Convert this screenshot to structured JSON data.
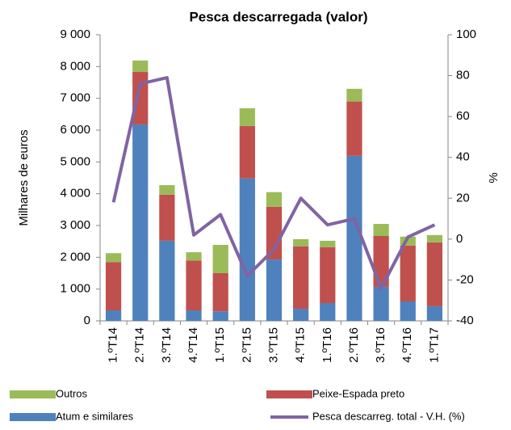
{
  "chart_data": {
    "type": "bar",
    "title": "Pesca descarregada (valor)",
    "y_label": "Milhares de euros",
    "y2_label": "%",
    "categories": [
      "1.ºT14",
      "2.ºT14",
      "3.ºT14",
      "4.ºT14",
      "1.ºT15",
      "2.ºT15",
      "3.ºT15",
      "4.ºT15",
      "1.ºT16",
      "2.ºT16",
      "3.ºT16",
      "4.ºT16",
      "1.ºT17"
    ],
    "stacked": true,
    "series": [
      {
        "name": "Atum e similares",
        "color": "#4f81bd",
        "values": [
          330,
          6180,
          2520,
          330,
          300,
          4480,
          1930,
          380,
          560,
          5190,
          1070,
          610,
          460
        ]
      },
      {
        "name": "Peixe-Espada preto",
        "color": "#c0504d",
        "values": [
          1520,
          1650,
          1450,
          1570,
          1200,
          1650,
          1660,
          1960,
          1760,
          1710,
          1600,
          1760,
          2010
        ]
      },
      {
        "name": "Outros",
        "color": "#9bbb59",
        "values": [
          280,
          360,
          300,
          260,
          890,
          560,
          460,
          230,
          200,
          400,
          380,
          280,
          230
        ]
      },
      {
        "name": "Pesca descarreg. total - V.H. (%)",
        "color": "#8064a2",
        "type": "line",
        "axis": "y2",
        "values": [
          18,
          76,
          79,
          2,
          12,
          -18,
          -5,
          20,
          7,
          10,
          -24,
          1,
          7
        ]
      }
    ],
    "ylim": [
      0,
      9000
    ],
    "yticks": [
      0,
      {
        "value": 1000,
        "label": "1 000"
      },
      {
        "value": 2000,
        "label": "2 000"
      },
      {
        "value": 3000,
        "label": "3 000"
      },
      {
        "value": 4000,
        "label": "4 000"
      },
      {
        "value": 5000,
        "label": "5 000"
      },
      {
        "value": 6000,
        "label": "6 000"
      },
      {
        "value": 7000,
        "label": "7 000"
      },
      {
        "value": 8000,
        "label": "8 000"
      },
      {
        "value": 9000,
        "label": "9 000"
      }
    ],
    "y2lim": [
      -40,
      100
    ],
    "y2ticks": [
      -40,
      -20,
      0,
      20,
      40,
      60,
      80,
      100
    ]
  }
}
